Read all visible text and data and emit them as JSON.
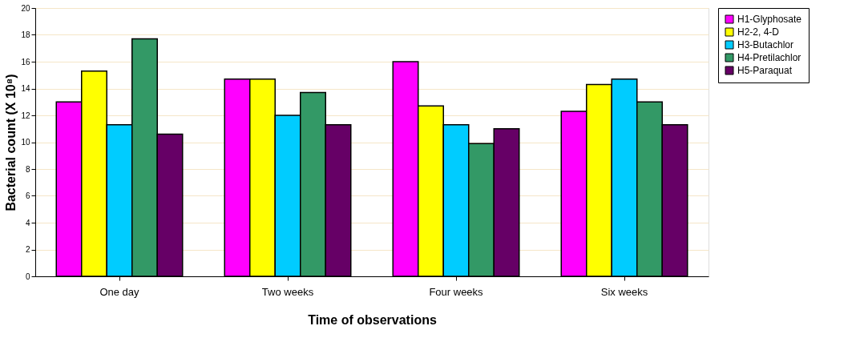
{
  "chart_data": {
    "type": "bar",
    "xlabel": "Time of observations",
    "ylabel": "Bacterial count (X 10⁸)",
    "categories": [
      "One day",
      "Two weeks",
      "Four weeks",
      "Six weeks"
    ],
    "series": [
      {
        "name": "H1-Glyphosate",
        "color": "#ff00ff",
        "values": [
          13.0,
          14.7,
          16.0,
          12.3
        ]
      },
      {
        "name": "H2-2, 4-D",
        "color": "#ffff00",
        "values": [
          15.3,
          14.7,
          12.7,
          14.3
        ]
      },
      {
        "name": "H3-Butachlor",
        "color": "#00ccff",
        "values": [
          11.3,
          12.0,
          11.3,
          14.7
        ]
      },
      {
        "name": "H4-Pretilachlor",
        "color": "#339966",
        "values": [
          17.7,
          13.7,
          9.9,
          13.0
        ]
      },
      {
        "name": "H5-Paraquat",
        "color": "#660066",
        "values": [
          10.6,
          11.3,
          11.0,
          11.3
        ]
      }
    ],
    "ylim": [
      0,
      20
    ],
    "yticks": [
      0,
      2,
      4,
      6,
      8,
      10,
      12,
      14,
      16,
      18,
      20
    ],
    "grid": "y",
    "legend": "right"
  }
}
